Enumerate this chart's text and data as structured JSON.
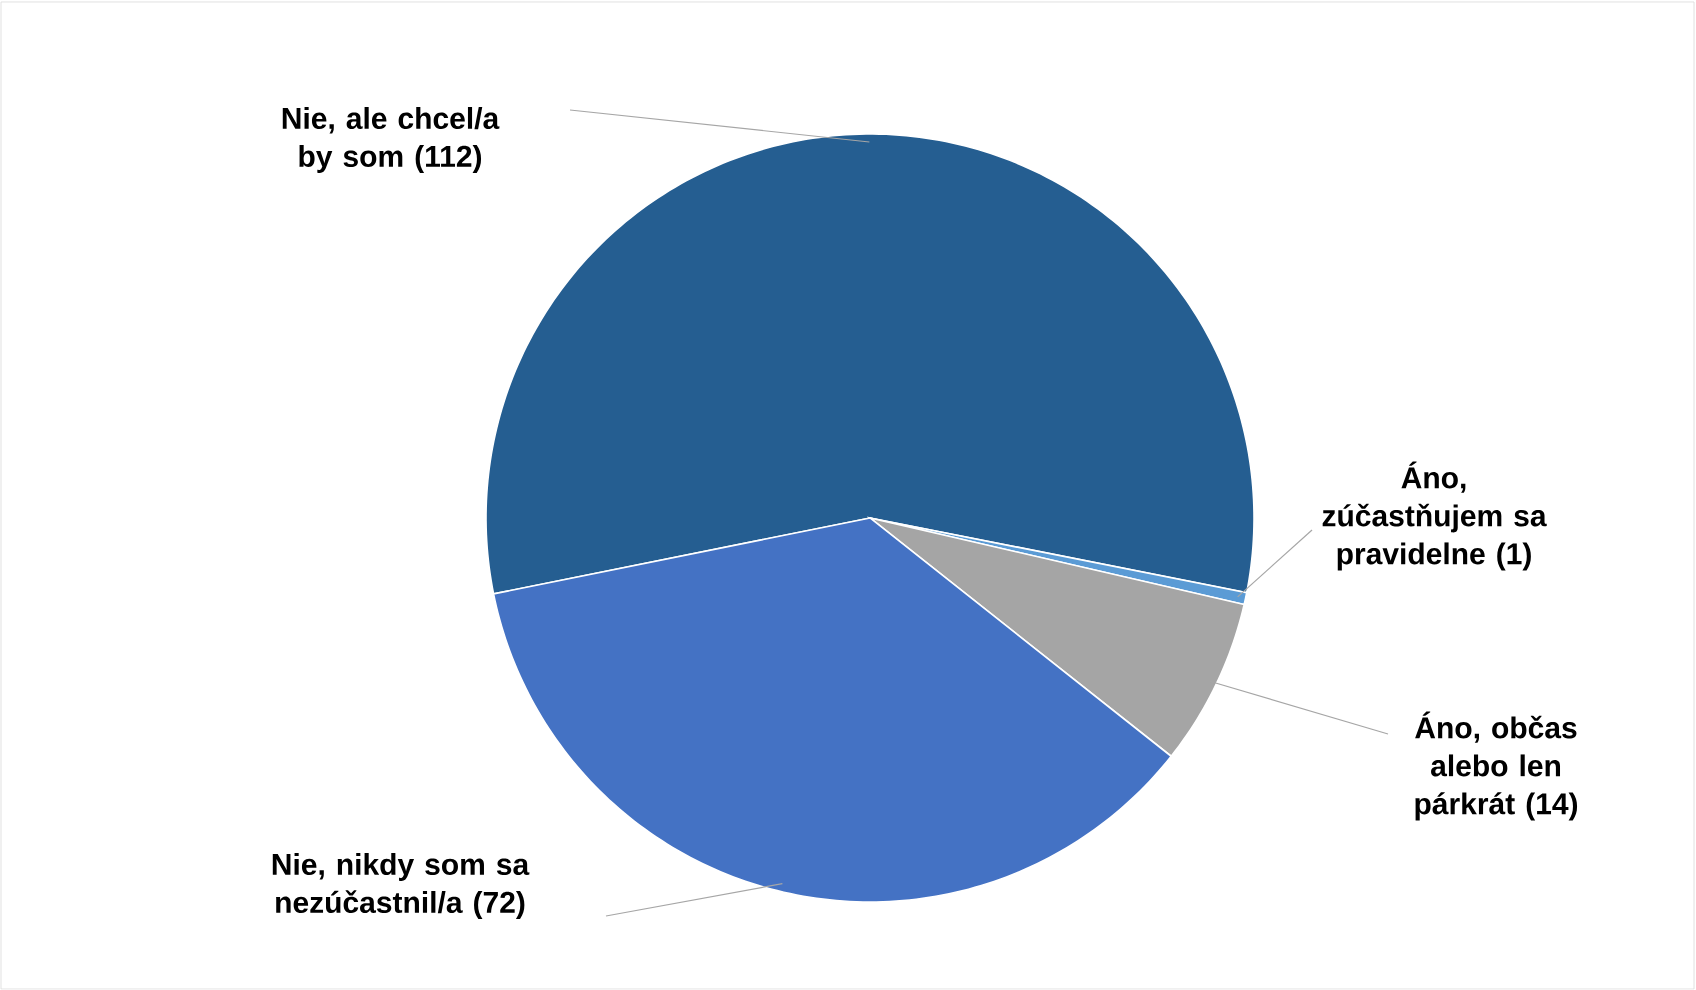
{
  "chart_data": {
    "type": "pie",
    "categories": [
      "Nie, ale chcel/a by som",
      "Áno, zúčastňujem sa pravidelne",
      "Áno, občas alebo len párkrát",
      "Nie, nikdy som sa nezúčastnil/a"
    ],
    "values": [
      112,
      1,
      14,
      72
    ],
    "colors": [
      "#255e91",
      "#5b9bd5",
      "#a5a5a5",
      "#4472c4"
    ],
    "value_labels": [
      "(112)",
      "(1)",
      "(14)",
      "(72)"
    ]
  }
}
